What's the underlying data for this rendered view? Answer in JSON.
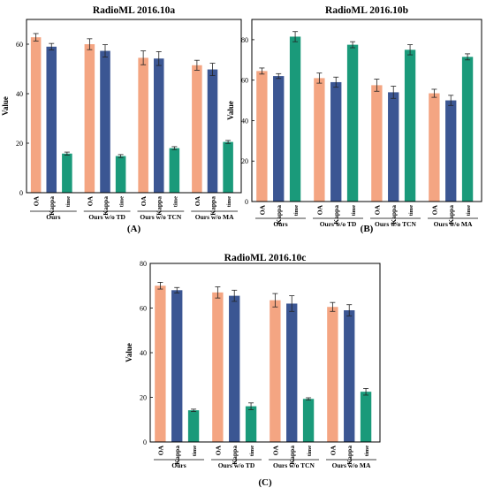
{
  "chart_data": [
    {
      "type": "bar",
      "panel_label": "(A)",
      "title": "RadioML 2016.10a",
      "ylabel": "Value",
      "ylim": [
        0,
        70
      ],
      "yticks": [
        0,
        20,
        40,
        60
      ],
      "groups": [
        "Ours",
        "Ours w/o TD",
        "Ours w/o TCN",
        "Ours w/o MA"
      ],
      "metrics": [
        "OA",
        "Kappa",
        "time"
      ],
      "series": [
        {
          "name": "OA",
          "color": "#f4a582",
          "values": [
            62.8,
            60.0,
            54.5,
            51.5
          ],
          "errors": [
            1.5,
            2.2,
            2.8,
            2.0
          ]
        },
        {
          "name": "Kappa",
          "color": "#3b5693",
          "values": [
            59.0,
            57.3,
            54.2,
            49.8
          ],
          "errors": [
            1.3,
            2.5,
            2.8,
            2.5
          ]
        },
        {
          "name": "time",
          "color": "#1a9a7a",
          "values": [
            15.8,
            14.8,
            18.0,
            20.5
          ],
          "errors": [
            0.6,
            0.6,
            0.6,
            0.6
          ]
        }
      ]
    },
    {
      "type": "bar",
      "panel_label": "(B)",
      "title": "RadioML 2016.10b",
      "ylabel": "Value",
      "ylim": [
        0,
        90
      ],
      "yticks": [
        0,
        20,
        40,
        60,
        80
      ],
      "groups": [
        "Ours",
        "Ours w/o TD",
        "Ours w/o TCN",
        "Ours w/o MA"
      ],
      "metrics": [
        "OA",
        "Kappa",
        "time"
      ],
      "series": [
        {
          "name": "OA",
          "color": "#f4a582",
          "values": [
            64.5,
            61.0,
            57.5,
            53.5
          ],
          "errors": [
            1.5,
            2.5,
            3.0,
            2.0
          ]
        },
        {
          "name": "Kappa",
          "color": "#3b5693",
          "values": [
            62.0,
            59.0,
            54.0,
            50.0
          ],
          "errors": [
            1.2,
            2.5,
            3.0,
            2.5
          ]
        },
        {
          "name": "time",
          "color": "#1a9a7a",
          "values": [
            81.5,
            77.5,
            75.0,
            71.5
          ],
          "errors": [
            2.5,
            1.5,
            2.5,
            1.5
          ]
        }
      ]
    },
    {
      "type": "bar",
      "panel_label": "(C)",
      "title": "RadioML 2016.10c",
      "ylabel": "Value",
      "ylim": [
        0,
        80
      ],
      "yticks": [
        0,
        20,
        40,
        60,
        80
      ],
      "groups": [
        "Ours",
        "Ours w/o TD",
        "Ours w/o TCN",
        "Ours w/o MA"
      ],
      "metrics": [
        "OA",
        "Kappa",
        "time"
      ],
      "series": [
        {
          "name": "OA",
          "color": "#f4a582",
          "values": [
            70.0,
            67.0,
            63.5,
            60.5
          ],
          "errors": [
            1.5,
            2.5,
            3.0,
            2.0
          ]
        },
        {
          "name": "Kappa",
          "color": "#3b5693",
          "values": [
            68.0,
            65.5,
            62.0,
            59.0
          ],
          "errors": [
            1.2,
            2.5,
            3.5,
            2.5
          ]
        },
        {
          "name": "time",
          "color": "#1a9a7a",
          "values": [
            14.2,
            16.0,
            19.3,
            22.5
          ],
          "errors": [
            0.5,
            1.5,
            0.5,
            1.5
          ]
        }
      ]
    }
  ]
}
